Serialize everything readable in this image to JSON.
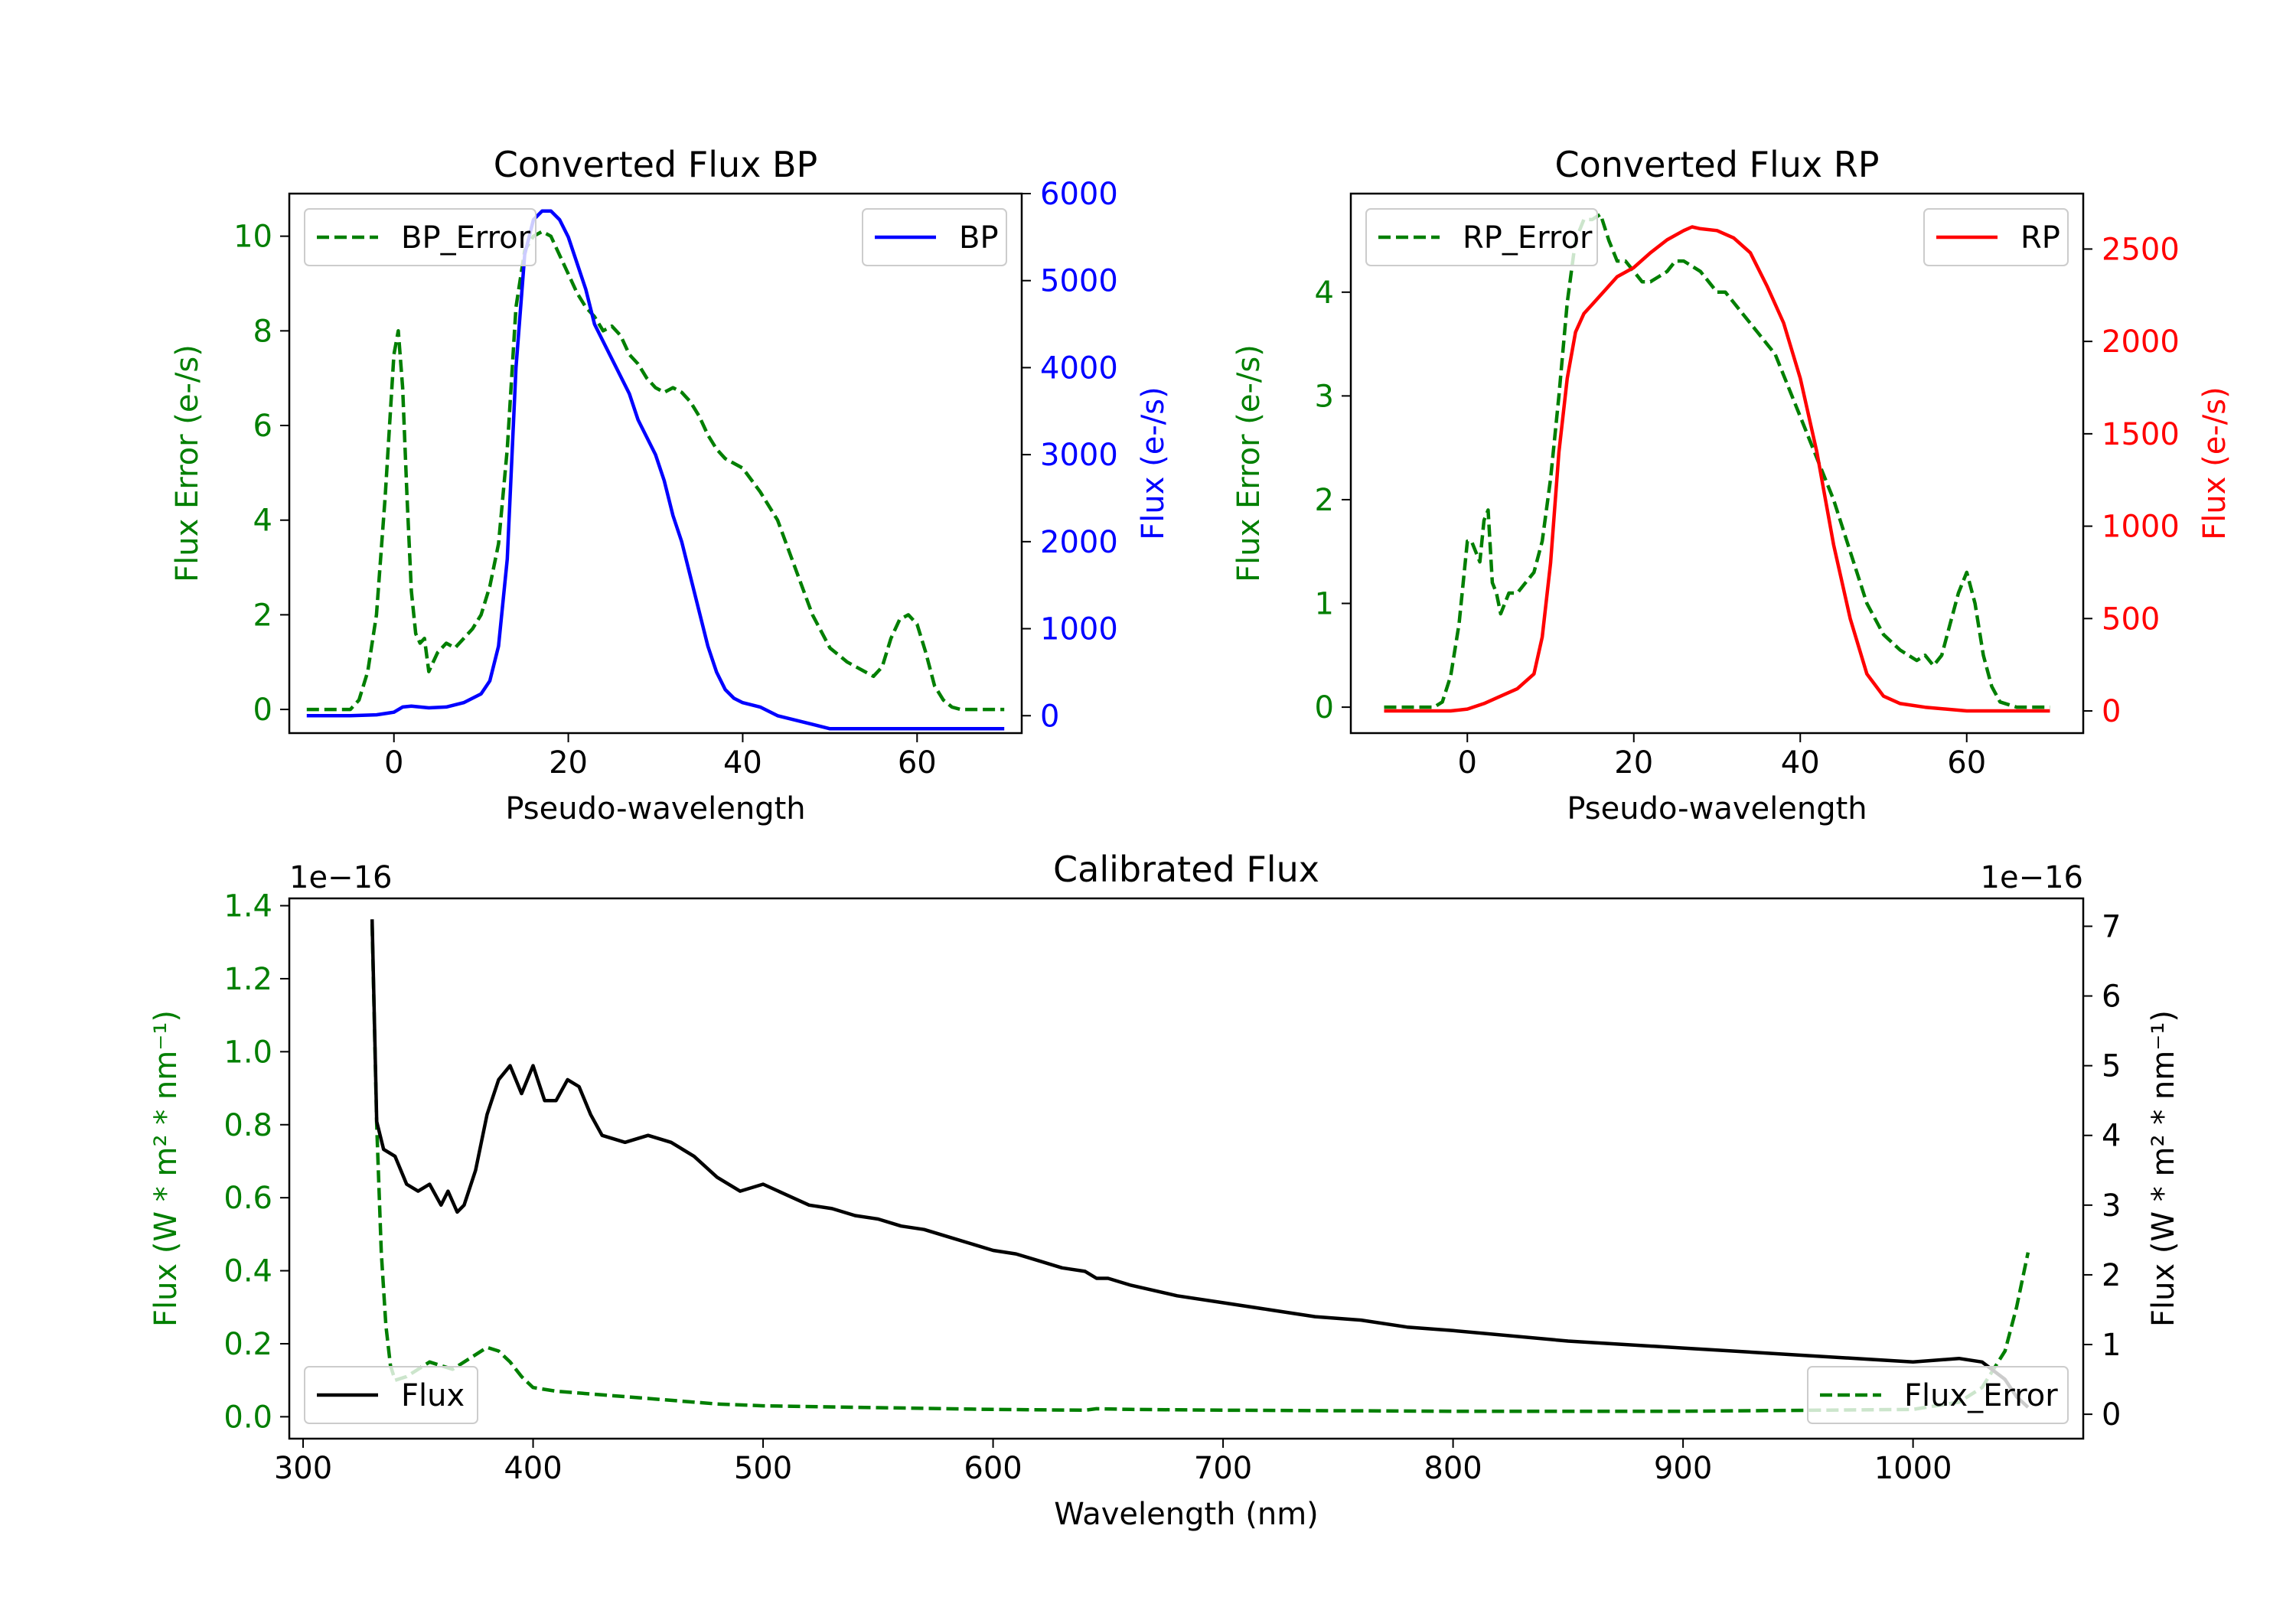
{
  "colors": {
    "error": "#007f00",
    "bp": "#0000ff",
    "rp": "#ff0000",
    "flux": "#000000",
    "axis": "#000000"
  },
  "chart_data": [
    {
      "id": "bp",
      "type": "line",
      "title": "Converted Flux BP",
      "xlabel": "Pseudo-wavelength",
      "ylabel_left": "Flux Error (e-/s)",
      "ylabel_right": "Flux (e-/s)",
      "xlim": [
        -12,
        72
      ],
      "ylim_left": [
        -0.5,
        10.9
      ],
      "ylim_right": [
        -200,
        6000
      ],
      "xticks": [
        0,
        20,
        40,
        60
      ],
      "yticks_left": [
        0,
        2,
        4,
        6,
        8,
        10
      ],
      "yticks_right": [
        0,
        1000,
        2000,
        3000,
        4000,
        5000,
        6000
      ],
      "legend_left": {
        "label": "BP_Error",
        "position": "upper-left"
      },
      "legend_right": {
        "label": "BP",
        "position": "upper-right"
      },
      "series": [
        {
          "name": "BP_Error",
          "axis": "left",
          "style": "dashed",
          "color_key": "error",
          "x": [
            -10,
            -5,
            -4,
            -3,
            -2,
            -1,
            0,
            0.5,
            1,
            1.5,
            2,
            2.5,
            3,
            3.5,
            4,
            5,
            6,
            7,
            8,
            9,
            10,
            11,
            12,
            13,
            14,
            15,
            16,
            17,
            18,
            19,
            20,
            21,
            22,
            23,
            24,
            25,
            26,
            27,
            28,
            29,
            30,
            31,
            32,
            33,
            34,
            35,
            36,
            37,
            38,
            39,
            40,
            42,
            44,
            46,
            48,
            50,
            52,
            54,
            55,
            56,
            57,
            58,
            59,
            60,
            61,
            62,
            63,
            64,
            65,
            66,
            68,
            70
          ],
          "values": [
            0,
            0,
            0.2,
            0.8,
            2,
            4.5,
            7.5,
            8.0,
            6.8,
            4.5,
            2.5,
            1.6,
            1.4,
            1.5,
            0.8,
            1.2,
            1.4,
            1.3,
            1.5,
            1.7,
            2.0,
            2.6,
            3.5,
            5.5,
            8.5,
            9.7,
            10.0,
            10.1,
            10.0,
            9.6,
            9.2,
            8.8,
            8.5,
            8.3,
            8.0,
            8.1,
            7.9,
            7.5,
            7.3,
            7.0,
            6.8,
            6.7,
            6.8,
            6.7,
            6.5,
            6.2,
            5.8,
            5.5,
            5.3,
            5.2,
            5.1,
            4.6,
            4.0,
            3.0,
            2.0,
            1.3,
            1.0,
            0.8,
            0.7,
            0.9,
            1.5,
            1.9,
            2.0,
            1.8,
            1.2,
            0.5,
            0.2,
            0.05,
            0,
            0,
            0,
            0
          ]
        },
        {
          "name": "BP",
          "axis": "right",
          "style": "solid",
          "color_key": "bp",
          "x": [
            -10,
            -5,
            -2,
            0,
            1,
            2,
            3,
            4,
            6,
            8,
            10,
            11,
            12,
            13,
            14,
            15,
            16,
            17,
            18,
            19,
            20,
            21,
            22,
            23,
            24,
            25,
            26,
            27,
            28,
            29,
            30,
            31,
            32,
            33,
            34,
            35,
            36,
            37,
            38,
            39,
            40,
            42,
            44,
            46,
            48,
            50,
            52,
            55,
            60,
            65,
            70
          ],
          "values": [
            0,
            0,
            10,
            40,
            100,
            110,
            100,
            90,
            100,
            150,
            250,
            400,
            800,
            1800,
            4000,
            5300,
            5700,
            5800,
            5800,
            5700,
            5500,
            5200,
            4900,
            4500,
            4300,
            4100,
            3900,
            3700,
            3400,
            3200,
            3000,
            2700,
            2300,
            2000,
            1600,
            1200,
            800,
            500,
            300,
            200,
            150,
            100,
            0,
            -50,
            -100,
            -150,
            -150,
            -150,
            -150,
            -150,
            -150
          ]
        }
      ]
    },
    {
      "id": "rp",
      "type": "line",
      "title": "Converted Flux RP",
      "xlabel": "Pseudo-wavelength",
      "ylabel_left": "Flux Error (e-/s)",
      "ylabel_right": "Flux (e-/s)",
      "xlim": [
        -14,
        74
      ],
      "ylim_left": [
        -0.25,
        4.95
      ],
      "ylim_right": [
        -120,
        2800
      ],
      "xticks": [
        0,
        20,
        40,
        60
      ],
      "yticks_left": [
        0,
        1,
        2,
        3,
        4
      ],
      "yticks_right": [
        0,
        500,
        1000,
        1500,
        2000,
        2500
      ],
      "legend_left": {
        "label": "RP_Error",
        "position": "upper-left"
      },
      "legend_right": {
        "label": "RP",
        "position": "upper-right"
      },
      "series": [
        {
          "name": "RP_Error",
          "axis": "left",
          "style": "dashed",
          "color_key": "error",
          "x": [
            -10,
            -4,
            -3,
            -2,
            -1,
            0,
            0.5,
            1,
            1.5,
            2,
            2.5,
            3,
            3.5,
            4,
            5,
            6,
            7,
            8,
            9,
            10,
            11,
            12,
            13,
            14,
            15,
            16,
            17,
            18,
            19,
            20,
            21,
            22,
            23,
            24,
            25,
            26,
            27,
            28,
            29,
            30,
            31,
            32,
            33,
            34,
            35,
            36,
            37,
            38,
            39,
            40,
            42,
            44,
            46,
            48,
            50,
            52,
            54,
            55,
            56,
            57,
            58,
            59,
            60,
            61,
            62,
            63,
            64,
            66,
            68,
            70
          ],
          "values": [
            0,
            0,
            0.05,
            0.3,
            0.8,
            1.6,
            1.6,
            1.5,
            1.4,
            1.8,
            1.9,
            1.2,
            1.1,
            0.9,
            1.1,
            1.1,
            1.2,
            1.3,
            1.6,
            2.2,
            3.0,
            3.9,
            4.5,
            4.7,
            4.7,
            4.75,
            4.5,
            4.3,
            4.3,
            4.2,
            4.1,
            4.1,
            4.15,
            4.2,
            4.3,
            4.3,
            4.25,
            4.2,
            4.1,
            4.0,
            4.0,
            3.9,
            3.8,
            3.7,
            3.6,
            3.5,
            3.4,
            3.2,
            3.0,
            2.8,
            2.4,
            2.0,
            1.5,
            1.0,
            0.7,
            0.55,
            0.45,
            0.5,
            0.4,
            0.5,
            0.8,
            1.1,
            1.3,
            1.0,
            0.5,
            0.2,
            0.05,
            0,
            0,
            0
          ]
        },
        {
          "name": "RP",
          "axis": "right",
          "style": "solid",
          "color_key": "rp",
          "x": [
            -10,
            -2,
            0,
            2,
            4,
            6,
            8,
            9,
            10,
            11,
            12,
            13,
            14,
            15,
            16,
            17,
            18,
            20,
            22,
            24,
            26,
            27,
            28,
            30,
            32,
            34,
            36,
            38,
            40,
            42,
            44,
            46,
            48,
            50,
            52,
            55,
            60,
            65,
            70
          ],
          "values": [
            0,
            0,
            10,
            40,
            80,
            120,
            200,
            400,
            800,
            1400,
            1800,
            2050,
            2150,
            2200,
            2250,
            2300,
            2350,
            2400,
            2480,
            2550,
            2600,
            2620,
            2610,
            2600,
            2560,
            2480,
            2300,
            2100,
            1800,
            1400,
            900,
            500,
            200,
            80,
            40,
            20,
            0,
            0,
            0
          ]
        }
      ]
    },
    {
      "id": "calibrated",
      "type": "line",
      "title": "Calibrated Flux",
      "xlabel": "Wavelength (nm)",
      "ylabel_left": "Flux (W * m² * nm⁻¹)",
      "ylabel_right": "Flux (W * m² * nm⁻¹)",
      "offset_left": "1e−16",
      "offset_right": "1e−16",
      "xlim": [
        294,
        1074
      ],
      "ylim_left": [
        -0.06,
        1.42
      ],
      "ylim_right": [
        -0.35,
        7.4
      ],
      "xticks": [
        300,
        400,
        500,
        600,
        700,
        800,
        900,
        1000
      ],
      "yticks_left": [
        0.0,
        0.2,
        0.4,
        0.6,
        0.8,
        1.0,
        1.2,
        1.4
      ],
      "yticks_right": [
        0,
        1,
        2,
        3,
        4,
        5,
        6,
        7
      ],
      "legend_left": {
        "label": "Flux",
        "position": "lower-left"
      },
      "legend_right": {
        "label": "Flux_Error",
        "position": "lower-right"
      },
      "series": [
        {
          "name": "Flux_Error",
          "axis": "left",
          "style": "dashed",
          "color_key": "error",
          "x": [
            330,
            332,
            334,
            336,
            338,
            340,
            345,
            350,
            355,
            360,
            365,
            370,
            375,
            380,
            385,
            390,
            395,
            400,
            410,
            420,
            430,
            440,
            450,
            460,
            480,
            500,
            550,
            600,
            640,
            645,
            660,
            700,
            800,
            900,
            1000,
            1020,
            1030,
            1040,
            1045,
            1050
          ],
          "values": [
            1.35,
            0.8,
            0.45,
            0.25,
            0.14,
            0.1,
            0.11,
            0.13,
            0.15,
            0.14,
            0.13,
            0.15,
            0.17,
            0.19,
            0.18,
            0.15,
            0.11,
            0.08,
            0.07,
            0.065,
            0.06,
            0.055,
            0.05,
            0.045,
            0.035,
            0.03,
            0.025,
            0.02,
            0.018,
            0.022,
            0.02,
            0.018,
            0.015,
            0.015,
            0.02,
            0.04,
            0.08,
            0.18,
            0.3,
            0.45
          ]
        },
        {
          "name": "Flux",
          "axis": "right",
          "style": "solid",
          "color_key": "flux",
          "x": [
            330,
            332,
            335,
            340,
            345,
            350,
            355,
            360,
            363,
            367,
            370,
            375,
            380,
            385,
            390,
            395,
            400,
            405,
            410,
            415,
            420,
            425,
            430,
            440,
            450,
            460,
            470,
            480,
            490,
            500,
            510,
            520,
            530,
            540,
            550,
            560,
            570,
            580,
            590,
            600,
            610,
            620,
            630,
            640,
            645,
            650,
            660,
            680,
            700,
            720,
            740,
            760,
            780,
            800,
            850,
            900,
            950,
            1000,
            1020,
            1030,
            1040,
            1045,
            1050
          ],
          "values": [
            7.1,
            4.2,
            3.8,
            3.7,
            3.3,
            3.2,
            3.3,
            3.0,
            3.2,
            2.9,
            3.0,
            3.5,
            4.3,
            4.8,
            5.0,
            4.6,
            5.0,
            4.5,
            4.5,
            4.8,
            4.7,
            4.3,
            4.0,
            3.9,
            4.0,
            3.9,
            3.7,
            3.4,
            3.2,
            3.3,
            3.15,
            3.0,
            2.95,
            2.85,
            2.8,
            2.7,
            2.65,
            2.55,
            2.45,
            2.35,
            2.3,
            2.2,
            2.1,
            2.05,
            1.95,
            1.95,
            1.85,
            1.7,
            1.6,
            1.5,
            1.4,
            1.35,
            1.25,
            1.2,
            1.05,
            0.95,
            0.85,
            0.75,
            0.8,
            0.75,
            0.5,
            0.25,
            0.1
          ]
        }
      ]
    }
  ]
}
